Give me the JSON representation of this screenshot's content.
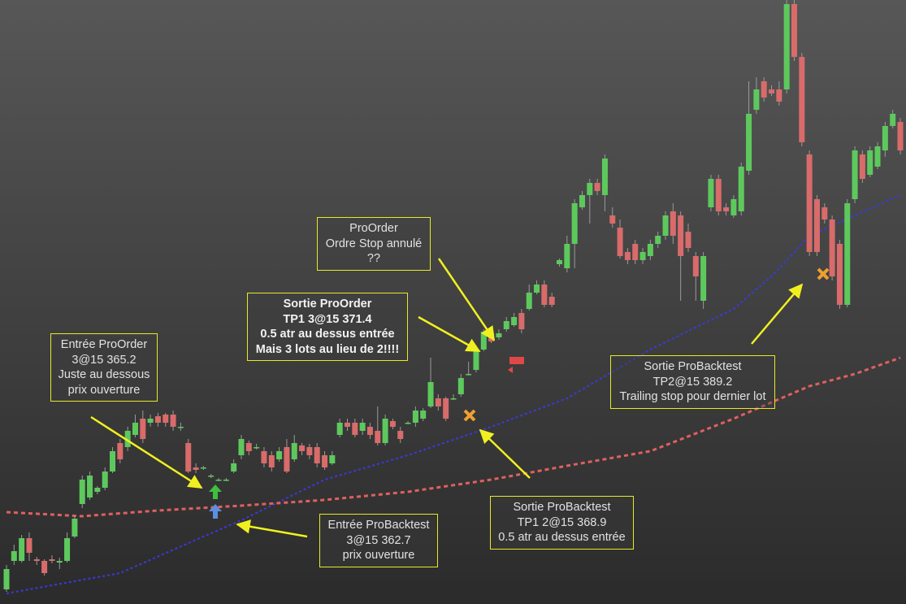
{
  "chart_data": {
    "type": "candlestick",
    "up_color": "#5dc95d",
    "down_color": "#d96b6b",
    "wick_color": "#9a9a9a",
    "ylim": [
      345.8,
      420.1
    ],
    "open": [
      347.6,
      351.1,
      351.1,
      353.9,
      351.3,
      351.1,
      351.3,
      350.9,
      351.1,
      354.1,
      358.1,
      358.9,
      359.6,
      360.1,
      362.1,
      365.6,
      365.1,
      366.6,
      368.6,
      368.1,
      368.9,
      369.1,
      369.1,
      367.6,
      365.6,
      362.6,
      362.6,
      361.6,
      361.1,
      361.1,
      362.1,
      364.1,
      365.6,
      365.1,
      364.6,
      364.1,
      363.6,
      365.1,
      363.6,
      365.3,
      365.1,
      365.1,
      364.1,
      363.1,
      366.6,
      368.1,
      368.1,
      367.1,
      367.6,
      367.1,
      365.6,
      368.3,
      367.1,
      368.1,
      368.1,
      368.6,
      370.1,
      371.1,
      371.1,
      371.1,
      371.6,
      374.1,
      374.6,
      377.1,
      379.1,
      378.6,
      379.6,
      380.1,
      381.6,
      382.1,
      384.1,
      385.1,
      383.6,
      387.6,
      387.1,
      390.1,
      394.6,
      396.1,
      397.6,
      396.1,
      393.6,
      392.1,
      389.1,
      390.1,
      388.1,
      388.6,
      390.1,
      391.1,
      394.1,
      393.6,
      391.6,
      388.6,
      383.1,
      394.6,
      398.1,
      394.6,
      393.6,
      394.1,
      399.1,
      406.6,
      410.1,
      409.1,
      409.1,
      409.1,
      419.6,
      413.1,
      401.1,
      395.6,
      394.6,
      393.1,
      390.1,
      382.6,
      395.6,
      401.1,
      398.6,
      399.6,
      401.6,
      404.6,
      405.1
    ],
    "high": [
      350.6,
      353.1,
      354.3,
      354.6,
      351.6,
      351.3,
      351.8,
      351.5,
      354.6,
      356.6,
      361.6,
      362.1,
      360.3,
      362.6,
      365.1,
      366.1,
      367.6,
      369.1,
      369.6,
      369.1,
      369.3,
      369.3,
      369.6,
      368.1,
      366.1,
      363.1,
      362.8,
      361.8,
      361.3,
      361.3,
      363.6,
      366.6,
      365.9,
      365.5,
      365.1,
      364.6,
      365.1,
      366.1,
      366.6,
      365.6,
      365.5,
      365.6,
      364.6,
      364.6,
      368.6,
      368.6,
      368.6,
      368.6,
      368.1,
      370.1,
      369.1,
      368.6,
      367.6,
      368.3,
      370.1,
      369.9,
      376.1,
      371.6,
      371.3,
      371.6,
      374.1,
      375.6,
      377.6,
      379.6,
      379.6,
      379.6,
      381.1,
      381.6,
      382.1,
      385.1,
      385.6,
      385.6,
      384.1,
      388.3,
      391.1,
      395.6,
      396.6,
      398.1,
      398.1,
      401.1,
      394.6,
      393.1,
      389.6,
      390.6,
      389.6,
      390.6,
      391.6,
      394.1,
      395.1,
      394.1,
      392.6,
      389.1,
      389.1,
      398.6,
      398.6,
      395.1,
      396.1,
      400.1,
      410.1,
      410.6,
      410.6,
      409.6,
      410.1,
      420.1,
      420.1,
      413.6,
      401.6,
      396.1,
      395.1,
      393.6,
      390.6,
      395.6,
      402.1,
      401.6,
      402.1,
      402.6,
      405.1,
      406.6,
      405.6
    ],
    "low": [
      347.3,
      350.6,
      350.9,
      351.1,
      350.6,
      349.3,
      350.8,
      350.1,
      350.9,
      353.9,
      357.6,
      358.6,
      359.3,
      359.8,
      361.9,
      363.1,
      364.6,
      366.3,
      365.6,
      367.6,
      367.6,
      367.6,
      367.1,
      367.1,
      361.9,
      361.9,
      362.3,
      361.3,
      360.9,
      360.9,
      361.9,
      363.6,
      364.1,
      364.8,
      362.6,
      362.1,
      363.3,
      361.9,
      363.3,
      364.1,
      363.6,
      362.6,
      362.3,
      362.9,
      366.3,
      367.1,
      366.3,
      366.6,
      366.1,
      365.3,
      365.3,
      367.3,
      365.6,
      367.9,
      367.6,
      368.3,
      369.9,
      369.6,
      368.3,
      370.9,
      371.3,
      373.9,
      374.3,
      376.9,
      377.9,
      378.3,
      379.3,
      379.9,
      379.1,
      381.9,
      383.9,
      382.3,
      382.3,
      387.3,
      386.6,
      387.1,
      394.3,
      392.6,
      396.1,
      394.1,
      392.1,
      388.3,
      387.6,
      387.6,
      387.6,
      388.1,
      389.6,
      390.6,
      390.1,
      383.1,
      389.1,
      383.1,
      382.1,
      394.1,
      393.6,
      393.6,
      393.3,
      393.6,
      398.6,
      406.1,
      407.6,
      408.3,
      407.1,
      408.6,
      412.6,
      402.1,
      388.6,
      388.6,
      392.6,
      385.6,
      382.1,
      382.3,
      395.1,
      397.6,
      398.3,
      399.3,
      400.8,
      404.3,
      401.1
    ],
    "close": [
      350.1,
      352.3,
      353.9,
      352.1,
      351.1,
      349.6,
      351.1,
      351.1,
      353.9,
      356.3,
      361.1,
      361.6,
      360.1,
      362.1,
      364.6,
      363.6,
      367.1,
      368.1,
      366.1,
      368.6,
      368.1,
      368.1,
      367.6,
      367.6,
      362.1,
      362.3,
      362.6,
      361.6,
      361.1,
      361.1,
      363.1,
      366.1,
      364.6,
      365.1,
      363.1,
      362.6,
      364.6,
      362.1,
      365.6,
      364.6,
      364.1,
      363.1,
      362.6,
      364.1,
      368.1,
      367.6,
      366.6,
      368.1,
      366.6,
      365.6,
      368.6,
      367.6,
      366.1,
      368.1,
      369.6,
      369.6,
      373.1,
      370.1,
      368.6,
      371.1,
      373.6,
      374.1,
      377.1,
      379.3,
      378.1,
      379.1,
      380.6,
      381.1,
      379.6,
      384.1,
      385.1,
      382.6,
      382.6,
      388.1,
      390.1,
      395.1,
      396.1,
      397.6,
      396.6,
      400.6,
      392.6,
      388.6,
      388.1,
      388.1,
      389.1,
      390.1,
      391.1,
      393.6,
      391.1,
      388.6,
      389.6,
      386.1,
      388.6,
      398.1,
      394.1,
      394.1,
      395.6,
      399.6,
      406.1,
      409.1,
      408.1,
      408.6,
      407.6,
      419.6,
      413.1,
      402.6,
      389.1,
      389.1,
      393.1,
      386.1,
      382.6,
      395.1,
      401.6,
      398.1,
      401.6,
      402.1,
      404.6,
      406.1,
      401.6
    ],
    "series": [
      {
        "color": "#3a3adc",
        "x": [
          0,
          15,
          26,
          31,
          42,
          53,
          64,
          74,
          85,
          96,
          101,
          106,
          112,
          118
        ],
        "values": [
          347.1,
          349.6,
          354.1,
          356.1,
          361.1,
          364.1,
          367.6,
          371.1,
          377.1,
          382.1,
          386.1,
          391.1,
          393.6,
          396.1
        ]
      },
      {
        "color": "#e06060",
        "x": [
          0,
          10,
          20,
          31,
          42,
          53,
          64,
          74,
          85,
          96,
          106,
          112,
          118
        ],
        "values": [
          357.1,
          356.6,
          357.3,
          357.9,
          358.6,
          359.6,
          361.1,
          362.8,
          364.6,
          368.6,
          372.6,
          374.1,
          376.1
        ]
      }
    ],
    "annotations": [
      {
        "lines": [
          "Entrée ProOrder",
          "3@15 365.2",
          "Juste au dessous",
          "prix ouverture"
        ]
      },
      {
        "lines": [
          "Sortie ProOrder",
          "TP1 3@15 371.4",
          "0.5 atr au dessus entrée",
          "Mais 3 lots au lieu de 2!!!!"
        ],
        "bold": true
      },
      {
        "lines": [
          "ProOrder",
          "Ordre Stop annulé",
          "??"
        ]
      },
      {
        "lines": [
          "Entrée ProBacktest",
          "3@15 362.7",
          "prix ouverture"
        ]
      },
      {
        "lines": [
          "Sortie ProBacktest",
          "TP1 2@15 368.9",
          "0.5 atr au dessus entrée"
        ]
      },
      {
        "lines": [
          "Sortie ProBacktest",
          "TP2@15 389.2",
          "Trailing stop pour dernier lot"
        ]
      }
    ]
  }
}
